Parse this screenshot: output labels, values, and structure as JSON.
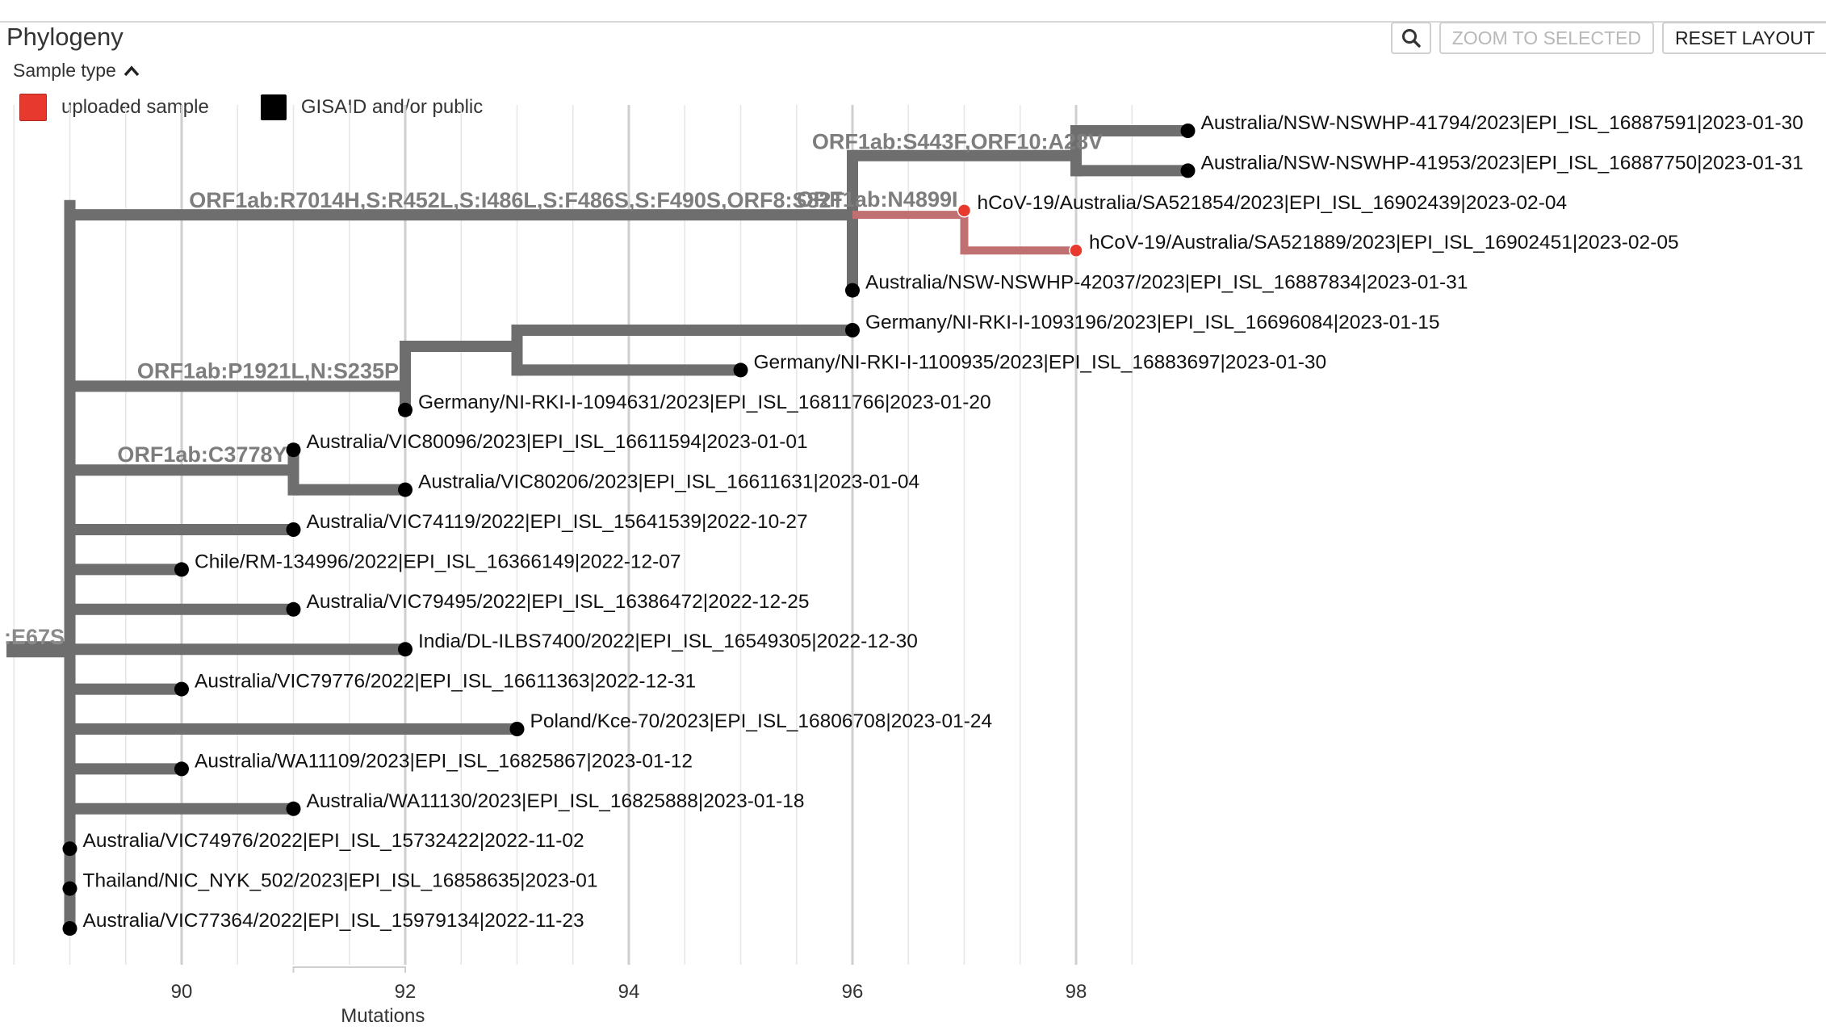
{
  "header": {
    "title": "Phylogeny",
    "zoom_to_selected_label": "ZOOM TO SELECTED",
    "reset_layout_label": "RESET LAYOUT",
    "search_icon": "magnifier-icon"
  },
  "legend": {
    "sample_type_label": "Sample type",
    "toggle_icon": "chevron-up-icon",
    "items": [
      {
        "label": "uploaded sample",
        "color": "#e8392f"
      },
      {
        "label": "GISAID and/or public",
        "color": "#000000"
      }
    ]
  },
  "colors": {
    "branch": "#6e6e6e",
    "uploaded_branch": "#c07070",
    "uploaded_node": "#e8392f",
    "public_node": "#000000",
    "mutation_label": "#7d7d7d",
    "grid": "#e6e6e6",
    "major_grid": "#cfcfcf"
  },
  "axis": {
    "title": "Mutations",
    "ticks": [
      "90",
      "92",
      "94",
      "96",
      "98"
    ]
  },
  "tree": {
    "root_label": ":E67S",
    "mutation_labels": [
      "ORF1ab:S443F,ORF10:A28V",
      "ORF1ab:R7014H,S:R452L,S:I486L,S:F486S,S:F490S,ORF8:S82T",
      "ORF1ab:N4899I",
      "ORF1ab:P1921L,N:S235P",
      "ORF1ab:C3778Y"
    ],
    "leaves": [
      {
        "label": "Australia/NSW-NSWHP-41794/2023|EPI_ISL_16887591|2023-01-30",
        "mutations": 99,
        "type": "public"
      },
      {
        "label": "Australia/NSW-NSWHP-41953/2023|EPI_ISL_16887750|2023-01-31",
        "mutations": 99,
        "type": "public"
      },
      {
        "label": "hCoV-19/Australia/SA521854/2023|EPI_ISL_16902439|2023-02-04",
        "mutations": 97,
        "type": "uploaded"
      },
      {
        "label": "hCoV-19/Australia/SA521889/2023|EPI_ISL_16902451|2023-02-05",
        "mutations": 98,
        "type": "uploaded"
      },
      {
        "label": "Australia/NSW-NSWHP-42037/2023|EPI_ISL_16887834|2023-01-31",
        "mutations": 96,
        "type": "public"
      },
      {
        "label": "Germany/NI-RKI-I-1093196/2023|EPI_ISL_16696084|2023-01-15",
        "mutations": 96,
        "type": "public"
      },
      {
        "label": "Germany/NI-RKI-I-1100935/2023|EPI_ISL_16883697|2023-01-30",
        "mutations": 95,
        "type": "public"
      },
      {
        "label": "Germany/NI-RKI-I-1094631/2023|EPI_ISL_16811766|2023-01-20",
        "mutations": 92,
        "type": "public"
      },
      {
        "label": "Australia/VIC80096/2023|EPI_ISL_16611594|2023-01-01",
        "mutations": 91,
        "type": "public"
      },
      {
        "label": "Australia/VIC80206/2023|EPI_ISL_16611631|2023-01-04",
        "mutations": 92,
        "type": "public"
      },
      {
        "label": "Australia/VIC74119/2022|EPI_ISL_15641539|2022-10-27",
        "mutations": 91,
        "type": "public"
      },
      {
        "label": "Chile/RM-134996/2022|EPI_ISL_16366149|2022-12-07",
        "mutations": 90,
        "type": "public"
      },
      {
        "label": "Australia/VIC79495/2022|EPI_ISL_16386472|2022-12-25",
        "mutations": 91,
        "type": "public"
      },
      {
        "label": "India/DL-ILBS7400/2022|EPI_ISL_16549305|2022-12-30",
        "mutations": 92,
        "type": "public"
      },
      {
        "label": "Australia/VIC79776/2022|EPI_ISL_16611363|2022-12-31",
        "mutations": 90,
        "type": "public"
      },
      {
        "label": "Poland/Kce-70/2023|EPI_ISL_16806708|2023-01-24",
        "mutations": 93,
        "type": "public"
      },
      {
        "label": "Australia/WA11109/2023|EPI_ISL_16825867|2023-01-12",
        "mutations": 90,
        "type": "public"
      },
      {
        "label": "Australia/WA11130/2023|EPI_ISL_16825888|2023-01-18",
        "mutations": 91,
        "type": "public"
      },
      {
        "label": "Australia/VIC74976/2022|EPI_ISL_15732422|2022-11-02",
        "mutations": 89,
        "type": "public"
      },
      {
        "label": "Thailand/NIC_NYK_502/2023|EPI_ISL_16858635|2023-01",
        "mutations": 89,
        "type": "public"
      },
      {
        "label": "Australia/VIC77364/2022|EPI_ISL_15979134|2022-11-23",
        "mutations": 89,
        "type": "public"
      }
    ]
  }
}
